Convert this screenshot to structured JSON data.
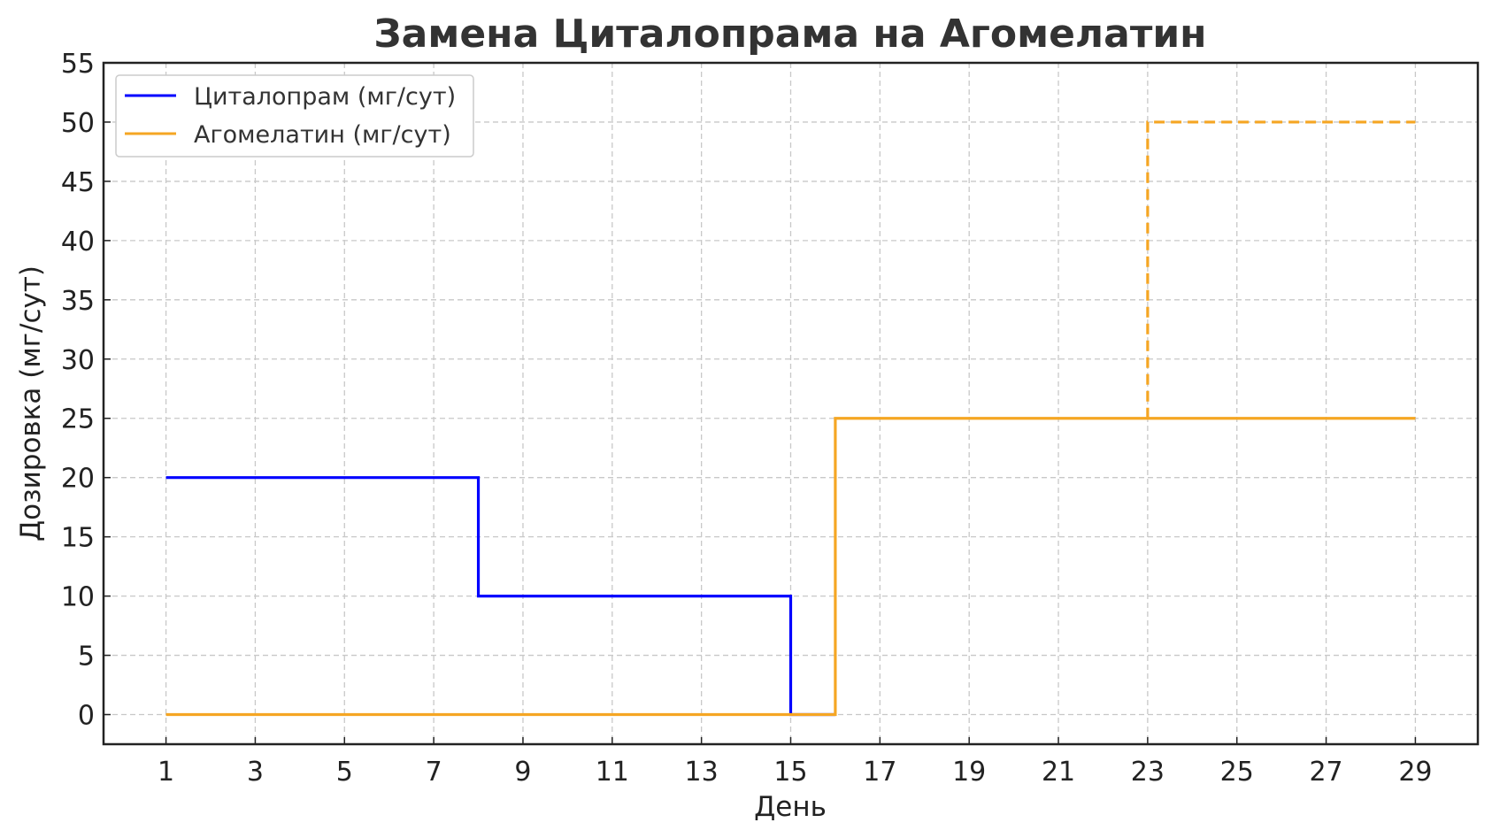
{
  "chart_data": {
    "type": "line",
    "title": "Замена Циталопрама на Агомелатин",
    "xlabel": "День",
    "ylabel": "Дозировка (мг/сут)",
    "xlim": [
      -0.4,
      30.4
    ],
    "ylim": [
      -2.5,
      55
    ],
    "xticks": [
      1,
      3,
      5,
      7,
      9,
      11,
      13,
      15,
      17,
      19,
      21,
      23,
      25,
      27,
      29
    ],
    "yticks": [
      0,
      5,
      10,
      15,
      20,
      25,
      30,
      35,
      40,
      45,
      50,
      55
    ],
    "grid": true,
    "legend_position": "top-left",
    "series": [
      {
        "name": "Циталопрам (мг/сут)",
        "color": "#0000ff",
        "style": "solid",
        "step": "post",
        "points": [
          [
            1,
            20
          ],
          [
            8,
            10
          ],
          [
            15,
            0
          ],
          [
            16,
            0
          ]
        ]
      },
      {
        "name": "Агомелатин (мг/сут)",
        "color": "#f5a623",
        "style": "solid",
        "step": "post",
        "points": [
          [
            1,
            0
          ],
          [
            16,
            25
          ],
          [
            29,
            25
          ]
        ]
      },
      {
        "name": "",
        "color": "#f5a623",
        "style": "dashed",
        "step": "post",
        "points": [
          [
            23,
            25
          ],
          [
            23,
            50
          ],
          [
            29,
            50
          ]
        ]
      }
    ]
  }
}
